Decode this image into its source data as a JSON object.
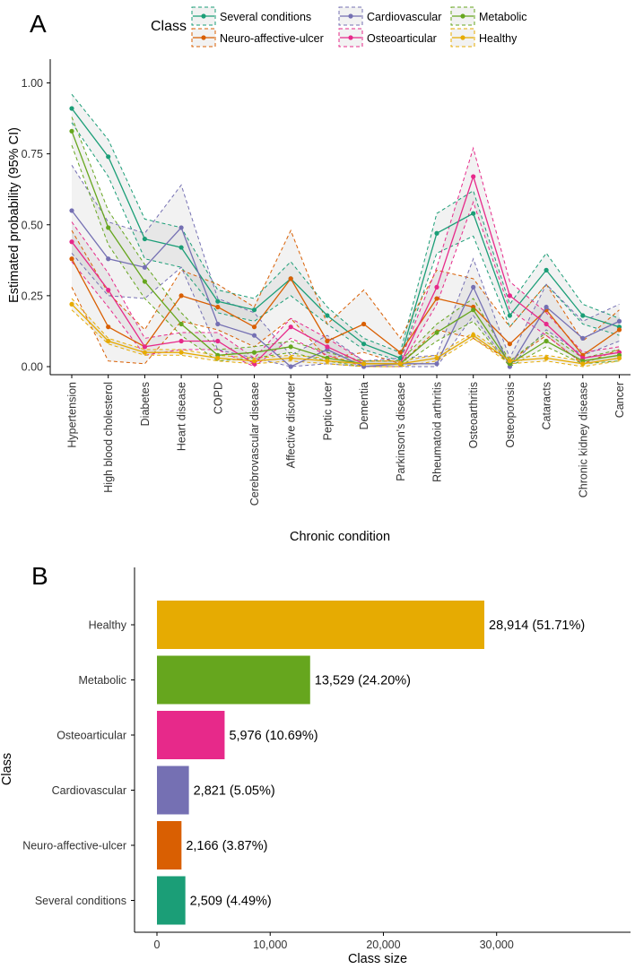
{
  "panels": {
    "a": {
      "label": "A"
    },
    "b": {
      "label": "B"
    }
  },
  "chart_data": [
    {
      "type": "line",
      "panel": "A",
      "title": "",
      "xlabel": "Chronic condition",
      "ylabel": "Estimated probability (95% CI)",
      "ylim": [
        0,
        1
      ],
      "yticks": [
        0.0,
        0.25,
        0.5,
        0.75,
        1.0
      ],
      "ytick_labels": [
        "0.00",
        "0.25",
        "0.50",
        "0.75",
        "1.00"
      ],
      "grid": false,
      "legend": {
        "title": "Class",
        "placement": "top",
        "ribbon": "95% CI (dashed bounds, shaded band)"
      },
      "categories": [
        "Hypertension",
        "High blood cholesterol",
        "Diabetes",
        "Heart disease",
        "COPD",
        "Cerebrovascular disease",
        "Affective disorder",
        "Peptic ulcer",
        "Dementia",
        "Parkinson's disease",
        "Rheumatoid arthritis",
        "Osteoarthritis",
        "Osteoporosis",
        "Cataracts",
        "Chronic kidney disease",
        "Cancer"
      ],
      "series": [
        {
          "name": "Several conditions",
          "color": "#1b9e77",
          "values": [
            0.91,
            0.74,
            0.45,
            0.42,
            0.23,
            0.2,
            0.31,
            0.18,
            0.08,
            0.03,
            0.47,
            0.54,
            0.18,
            0.34,
            0.18,
            0.14
          ],
          "lower": [
            0.86,
            0.67,
            0.38,
            0.35,
            0.19,
            0.16,
            0.25,
            0.15,
            0.06,
            0.02,
            0.4,
            0.46,
            0.14,
            0.29,
            0.15,
            0.11
          ],
          "upper": [
            0.96,
            0.8,
            0.52,
            0.49,
            0.27,
            0.24,
            0.37,
            0.21,
            0.1,
            0.05,
            0.54,
            0.62,
            0.22,
            0.4,
            0.22,
            0.17
          ]
        },
        {
          "name": "Neuro-affective-ulcer",
          "color": "#d95f02",
          "values": [
            0.38,
            0.14,
            0.07,
            0.25,
            0.21,
            0.14,
            0.31,
            0.09,
            0.15,
            0.05,
            0.24,
            0.21,
            0.08,
            0.2,
            0.04,
            0.13
          ],
          "lower": [
            0.28,
            0.02,
            0.01,
            0.16,
            0.13,
            0.07,
            0.17,
            0.03,
            0.05,
            0.01,
            0.13,
            0.1,
            0.02,
            0.11,
            0.01,
            0.06
          ],
          "upper": [
            0.48,
            0.26,
            0.13,
            0.34,
            0.29,
            0.21,
            0.48,
            0.15,
            0.27,
            0.1,
            0.34,
            0.31,
            0.14,
            0.29,
            0.09,
            0.2
          ]
        },
        {
          "name": "Cardiovascular",
          "color": "#7570b3",
          "values": [
            0.55,
            0.38,
            0.35,
            0.49,
            0.15,
            0.11,
            0.0,
            0.06,
            0.0,
            0.01,
            0.01,
            0.28,
            0.0,
            0.21,
            0.1,
            0.16
          ],
          "lower": [
            0.4,
            0.25,
            0.24,
            0.35,
            0.06,
            0.03,
            0.0,
            0.01,
            0.0,
            0.0,
            0.0,
            0.18,
            0.0,
            0.13,
            0.04,
            0.09
          ],
          "upper": [
            0.71,
            0.51,
            0.47,
            0.64,
            0.24,
            0.19,
            0.04,
            0.11,
            0.02,
            0.03,
            0.04,
            0.38,
            0.03,
            0.29,
            0.16,
            0.22
          ]
        },
        {
          "name": "Osteoarticular",
          "color": "#e7298a",
          "values": [
            0.44,
            0.27,
            0.07,
            0.09,
            0.09,
            0.01,
            0.14,
            0.07,
            0.01,
            0.01,
            0.28,
            0.67,
            0.25,
            0.15,
            0.03,
            0.05
          ],
          "lower": [
            0.37,
            0.21,
            0.04,
            0.06,
            0.06,
            0.0,
            0.1,
            0.04,
            0.0,
            0.0,
            0.22,
            0.58,
            0.2,
            0.11,
            0.01,
            0.03
          ],
          "upper": [
            0.51,
            0.33,
            0.1,
            0.12,
            0.12,
            0.03,
            0.17,
            0.1,
            0.02,
            0.02,
            0.35,
            0.77,
            0.3,
            0.19,
            0.05,
            0.07
          ]
        },
        {
          "name": "Metabolic",
          "color": "#66a61e",
          "values": [
            0.83,
            0.49,
            0.3,
            0.15,
            0.04,
            0.05,
            0.07,
            0.03,
            0.01,
            0.01,
            0.12,
            0.2,
            0.01,
            0.09,
            0.02,
            0.04
          ],
          "lower": [
            0.78,
            0.43,
            0.24,
            0.11,
            0.02,
            0.03,
            0.05,
            0.02,
            0.0,
            0.0,
            0.09,
            0.16,
            0.0,
            0.07,
            0.01,
            0.02
          ],
          "upper": [
            0.88,
            0.55,
            0.36,
            0.19,
            0.06,
            0.07,
            0.09,
            0.05,
            0.02,
            0.02,
            0.15,
            0.24,
            0.02,
            0.12,
            0.03,
            0.06
          ]
        },
        {
          "name": "Healthy",
          "color": "#e6ab02",
          "values": [
            0.22,
            0.09,
            0.05,
            0.05,
            0.03,
            0.02,
            0.03,
            0.02,
            0.01,
            0.01,
            0.03,
            0.11,
            0.02,
            0.03,
            0.01,
            0.03
          ],
          "lower": [
            0.2,
            0.08,
            0.04,
            0.04,
            0.02,
            0.01,
            0.02,
            0.01,
            0.0,
            0.0,
            0.02,
            0.1,
            0.01,
            0.02,
            0.0,
            0.02
          ],
          "upper": [
            0.24,
            0.1,
            0.06,
            0.06,
            0.04,
            0.03,
            0.04,
            0.03,
            0.02,
            0.02,
            0.04,
            0.12,
            0.03,
            0.04,
            0.02,
            0.04
          ]
        }
      ]
    },
    {
      "type": "bar",
      "panel": "B",
      "orientation": "horizontal",
      "title": "",
      "xlabel": "Class size",
      "ylabel": "Class",
      "xlim": [
        0,
        40000
      ],
      "xticks": [
        0,
        10000,
        20000,
        30000
      ],
      "xtick_labels": [
        "0",
        "10,000",
        "20,000",
        "30,000"
      ],
      "grid": false,
      "categories": [
        "Healthy",
        "Metabolic",
        "Osteoarticular",
        "Cardiovascular",
        "Neuro-affective-ulcer",
        "Several conditions"
      ],
      "values": [
        28914,
        13529,
        5976,
        2821,
        2166,
        2509
      ],
      "labels": [
        "28,914 (51.71%)",
        "13,529 (24.20%)",
        "5,976 (10.69%)",
        "2,821 (5.05%)",
        "2,166 (3.87%)",
        "2,509 (4.49%)"
      ],
      "colors": [
        "#e6ab02",
        "#66a61e",
        "#e7298a",
        "#7570b3",
        "#d95f02",
        "#1b9e77"
      ]
    }
  ]
}
